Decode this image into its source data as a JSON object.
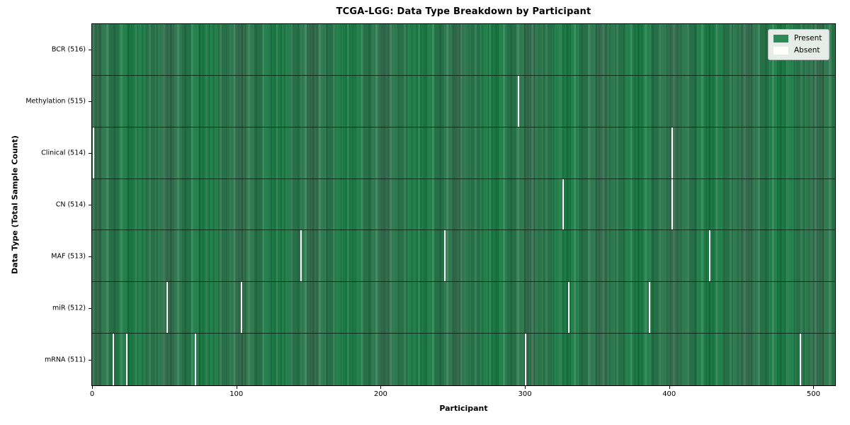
{
  "colors": {
    "present": "#2e8b57",
    "present_edge": "#1c5636",
    "absent": "#ffffff",
    "legend_bg": "#e6ece7",
    "legend_border": "#b4bab4"
  },
  "chart_data": {
    "type": "heatmap",
    "title": "TCGA-LGG: Data Type Breakdown by Participant",
    "xlabel": "Participant",
    "ylabel": "Data Type (Total Sample Count)",
    "x_ticks": [
      0,
      100,
      200,
      300,
      400,
      500
    ],
    "x_range": [
      -0.5,
      515.5
    ],
    "total_participants": 516,
    "grid": false,
    "legend_position": "upper right",
    "legend": [
      {
        "label": "Present",
        "color": "#2e8b57"
      },
      {
        "label": "Absent",
        "color": "#ffffff"
      }
    ],
    "rows": [
      {
        "label": "BCR (516)",
        "data_type": "BCR",
        "present_count": 516,
        "absent_participants": []
      },
      {
        "label": "Methylation (515)",
        "data_type": "Methylation",
        "present_count": 515,
        "absent_participants": [
          295
        ]
      },
      {
        "label": "Clinical (514)",
        "data_type": "Clinical",
        "present_count": 514,
        "absent_participants": [
          0,
          402
        ]
      },
      {
        "label": "CN (514)",
        "data_type": "CN",
        "present_count": 514,
        "absent_participants": [
          326,
          402
        ]
      },
      {
        "label": "MAF (513)",
        "data_type": "MAF",
        "present_count": 513,
        "absent_participants": [
          144,
          244,
          428
        ]
      },
      {
        "label": "miR (512)",
        "data_type": "miR",
        "present_count": 512,
        "absent_participants": [
          51,
          103,
          330,
          386
        ]
      },
      {
        "label": "mRNA (511)",
        "data_type": "mRNA",
        "present_count": 511,
        "absent_participants": [
          14,
          23,
          71,
          300,
          491
        ]
      }
    ]
  }
}
